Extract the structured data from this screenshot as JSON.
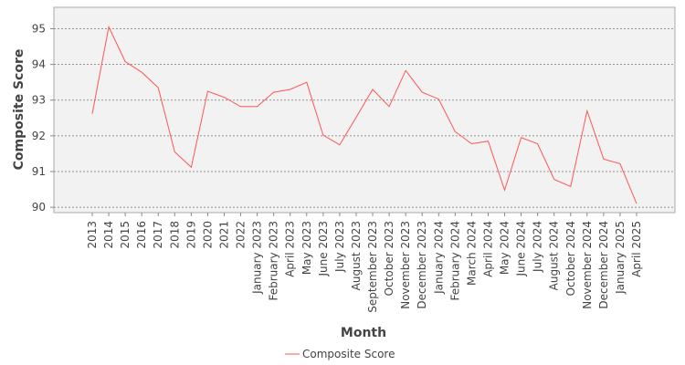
{
  "chart_data": {
    "type": "line",
    "xlabel": "Month",
    "ylabel": "Composite Score",
    "ylim": [
      89.85,
      95.6
    ],
    "yticks": [
      90,
      91,
      92,
      93,
      94,
      95
    ],
    "grid": true,
    "legend_position": "bottom",
    "categories": [
      "2013",
      "2014",
      "2015",
      "2016",
      "2017",
      "2018",
      "2019",
      "2020",
      "2021",
      "2022",
      "January 2023",
      "February 2023",
      "April 2023",
      "May 2023",
      "June 2023",
      "July 2023",
      "August 2023",
      "September 2023",
      "October 2023",
      "November 2023",
      "December 2023",
      "January 2024",
      "February 2024",
      "March 2024",
      "April 2024",
      "May 2024",
      "June 2024",
      "July 2024",
      "August 2024",
      "October 2024",
      "November 2024",
      "December 2024",
      "January 2025",
      "April 2025"
    ],
    "series": [
      {
        "name": "Composite Score",
        "color": "#ff5555",
        "values": [
          92.62,
          95.05,
          94.08,
          93.78,
          93.35,
          91.55,
          91.12,
          93.25,
          93.08,
          92.82,
          92.82,
          93.22,
          93.3,
          93.5,
          92.02,
          91.75,
          92.52,
          93.3,
          92.82,
          93.83,
          93.22,
          93.03,
          92.12,
          91.78,
          91.85,
          90.48,
          91.95,
          91.78,
          90.78,
          90.58,
          92.7,
          91.35,
          91.22,
          90.1
        ]
      }
    ]
  }
}
